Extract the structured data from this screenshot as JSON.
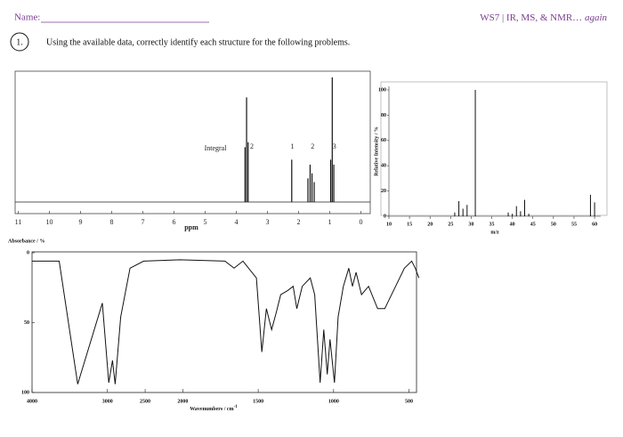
{
  "header": {
    "name_label": "Name:",
    "worksheet": "WS7 | IR, MS, & NMR… ",
    "worksheet_emphasis": "again"
  },
  "problem": {
    "number": "1.",
    "instruction": "Using the available data, correctly identify each structure for the following problems."
  },
  "nmr": {
    "xlim": [
      11.1,
      -0.3
    ],
    "xticks": [
      11,
      10,
      9,
      8,
      7,
      6,
      5,
      4,
      3,
      2,
      1,
      0
    ],
    "xlabel": "ppm",
    "integral_label": "Integral",
    "integrals": [
      {
        "ppm": 3.5,
        "label": "2"
      },
      {
        "ppm": 2.2,
        "label": "1"
      },
      {
        "ppm": 1.55,
        "label": "2"
      },
      {
        "ppm": 0.85,
        "label": "3"
      }
    ],
    "peaks": {
      "ppm": [
        3.72,
        3.67,
        3.62,
        2.22,
        1.7,
        1.63,
        1.57,
        1.5,
        0.97,
        0.92,
        0.87
      ],
      "intensity": [
        44,
        84,
        48,
        34,
        19,
        30,
        23,
        16,
        34,
        100,
        30
      ]
    }
  },
  "ms": {
    "xlim": [
      10,
      61.5
    ],
    "ylim": [
      0,
      100
    ],
    "xticks": [
      10,
      15,
      20,
      25,
      30,
      35,
      40,
      45,
      50,
      55,
      60
    ],
    "yticks": [
      0,
      20,
      40,
      60,
      80,
      100
    ],
    "xlabel": "m/z",
    "ylabel": "Relative Intensity / %",
    "mz": [
      26,
      27,
      28,
      29,
      31,
      39,
      40,
      41,
      42,
      43,
      44,
      59,
      60
    ],
    "intensity": [
      3,
      12,
      6,
      9,
      100,
      3,
      2,
      8,
      4,
      13,
      2,
      17,
      11
    ]
  },
  "ir": {
    "xlim": [
      4000,
      450
    ],
    "x_scale_break": 2000,
    "ylim": [
      0,
      100
    ],
    "xticks": [
      4000,
      3000,
      2500,
      2000,
      1500,
      1000,
      500
    ],
    "yticks": [
      0,
      50,
      100
    ],
    "title": "Absorbance / %",
    "xlabel": "Wavenumbers / cm",
    "xlabel_sup": "-1",
    "x": [
      4000,
      3640,
      3394,
      3067,
      2982,
      2933,
      2897,
      2824,
      2700,
      2520,
      2036,
      1720,
      1660,
      1601,
      1512,
      1476,
      1446,
      1411,
      1381,
      1351,
      1304,
      1268,
      1244,
      1208,
      1155,
      1125,
      1089,
      1065,
      1042,
      1024,
      994,
      970,
      935,
      899,
      875,
      851,
      815,
      768,
      708,
      661,
      589,
      530,
      482,
      458,
      434
    ],
    "y": [
      6,
      6,
      94,
      36,
      93,
      77,
      94,
      46,
      11,
      6,
      5,
      6,
      11,
      6,
      18,
      71,
      40,
      55,
      43,
      30,
      27,
      24,
      40,
      24,
      18,
      30,
      93,
      55,
      87,
      62,
      93,
      46,
      24,
      11,
      24,
      14,
      30,
      24,
      40,
      40,
      24,
      11,
      6,
      11,
      18
    ]
  }
}
